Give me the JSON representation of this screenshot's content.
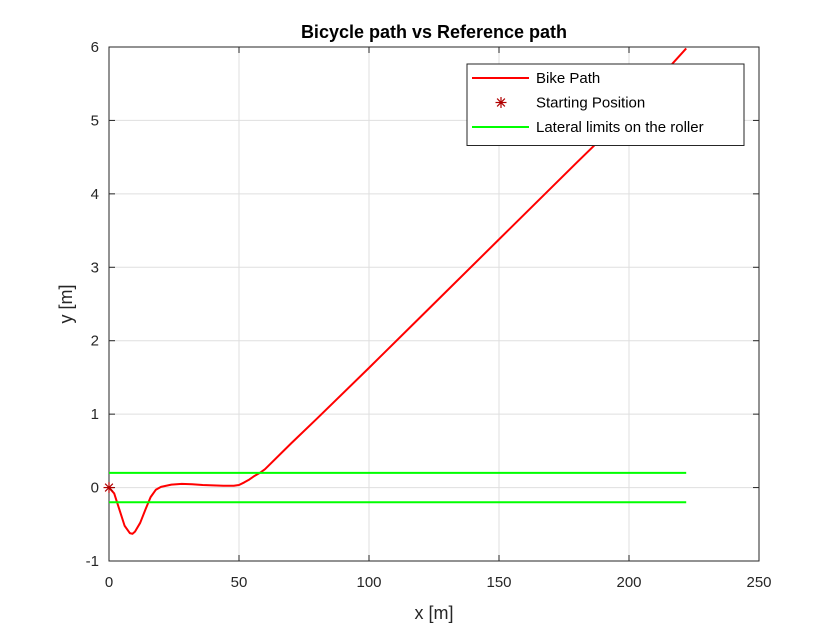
{
  "chart_data": {
    "type": "line",
    "title": "Bicycle path vs Reference path",
    "xlabel": "x [m]",
    "ylabel": "y [m]",
    "xlim": [
      0,
      250
    ],
    "ylim": [
      -1,
      6
    ],
    "xticks": [
      0,
      50,
      100,
      150,
      200,
      250
    ],
    "yticks": [
      -1,
      0,
      1,
      2,
      3,
      4,
      5,
      6
    ],
    "grid": true,
    "legend_position": "top-right",
    "series": [
      {
        "name": "Bike Path",
        "color": "#ff0000",
        "kind": "line",
        "x": [
          0,
          2,
          4,
          6,
          8,
          9,
          10,
          12,
          14,
          16,
          18,
          20,
          24,
          28,
          32,
          36,
          40,
          44,
          48,
          50,
          52,
          54,
          56,
          58,
          60,
          70,
          80,
          100,
          120,
          150,
          180,
          200,
          222
        ],
        "y": [
          0,
          -0.08,
          -0.3,
          -0.52,
          -0.62,
          -0.63,
          -0.6,
          -0.48,
          -0.3,
          -0.13,
          -0.03,
          0.01,
          0.04,
          0.05,
          0.045,
          0.035,
          0.03,
          0.025,
          0.025,
          0.035,
          0.07,
          0.11,
          0.16,
          0.2,
          0.25,
          0.6,
          0.94,
          1.63,
          2.33,
          3.38,
          4.43,
          5.12,
          5.98
        ]
      },
      {
        "name": "Starting Position",
        "color": "#b00000",
        "kind": "marker",
        "marker": "asterisk",
        "x": [
          0
        ],
        "y": [
          0
        ]
      },
      {
        "name": "Lateral limits on the roller",
        "color": "#00ff00",
        "kind": "line",
        "x": [
          0,
          222
        ],
        "y": [
          0.2,
          0.2
        ]
      },
      {
        "name": "",
        "color": "#00ff00",
        "kind": "line",
        "x": [
          0,
          222
        ],
        "y": [
          -0.2,
          -0.2
        ]
      }
    ]
  }
}
